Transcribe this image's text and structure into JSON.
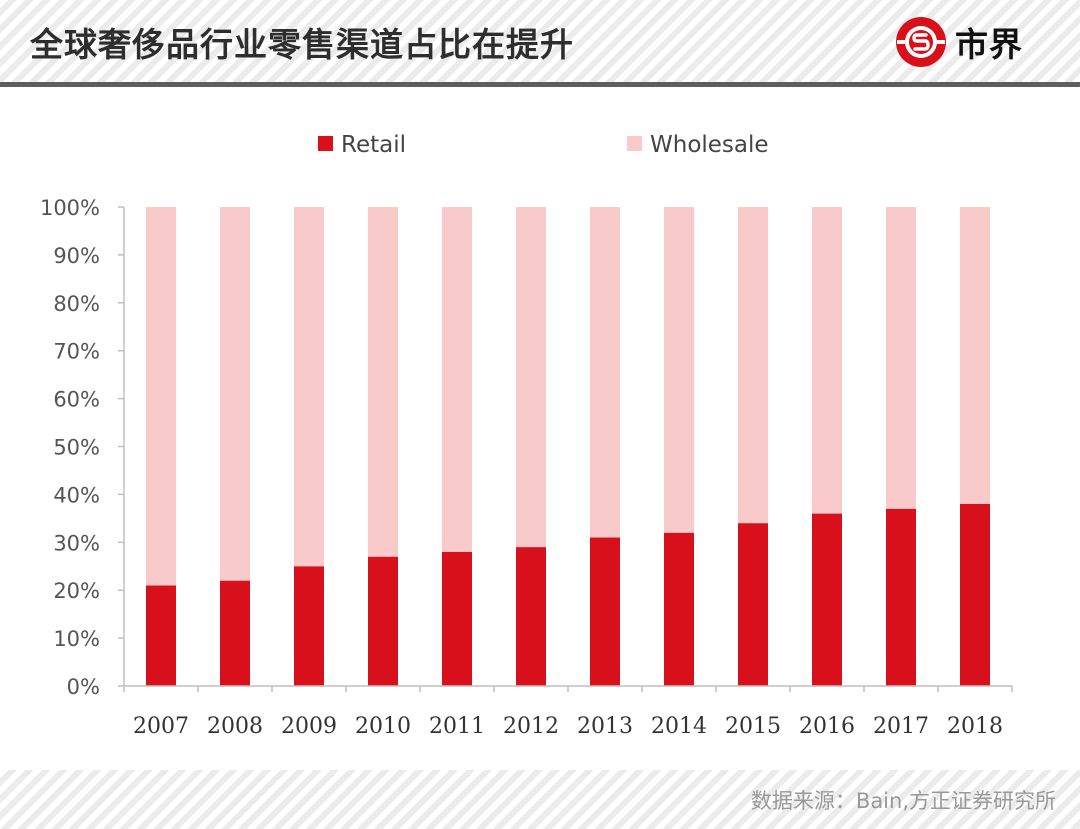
{
  "header": {
    "title": "全球奢侈品行业零售渠道占比在提升",
    "logo_text": "市界"
  },
  "footer": {
    "source": "数据来源：Bain,方正证券研究所"
  },
  "colors": {
    "retail": "#d7101c",
    "wholesale": "#f9caca",
    "axis": "#bfbfbf"
  },
  "chart_data": {
    "type": "bar",
    "stacked": true,
    "percent": true,
    "categories": [
      "2007",
      "2008",
      "2009",
      "2010",
      "2011",
      "2012",
      "2013",
      "2014",
      "2015",
      "2016",
      "2017",
      "2018"
    ],
    "series": [
      {
        "name": "Retail",
        "values": [
          21,
          22,
          25,
          27,
          28,
          29,
          31,
          32,
          34,
          36,
          37,
          38
        ]
      },
      {
        "name": "Wholesale",
        "values": [
          79,
          78,
          75,
          73,
          72,
          71,
          69,
          68,
          66,
          64,
          63,
          62
        ]
      }
    ],
    "yticks": [
      "0%",
      "10%",
      "20%",
      "30%",
      "40%",
      "50%",
      "60%",
      "70%",
      "80%",
      "90%",
      "100%"
    ],
    "ylim": [
      0,
      100
    ],
    "legend_position": "top",
    "grid": false
  }
}
